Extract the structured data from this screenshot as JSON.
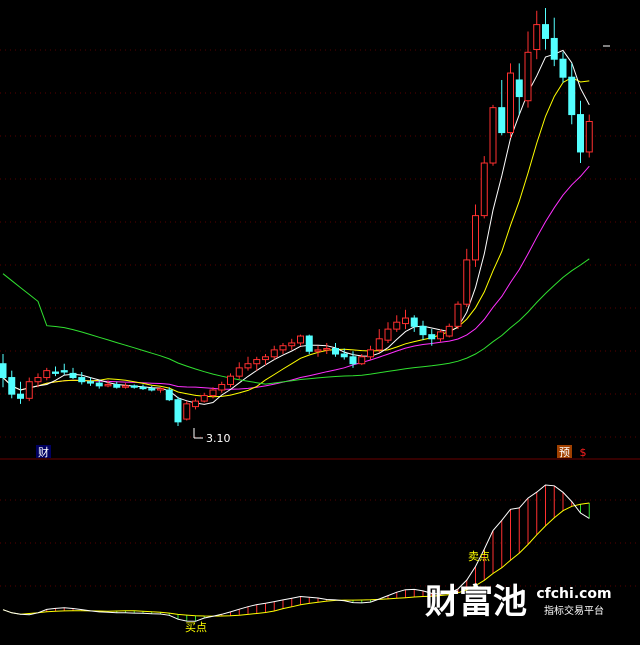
{
  "chart_data": [
    {
      "type": "candlestick",
      "panel": "price",
      "annotation_low": "3.10",
      "markers": [
        "财",
        "预",
        "$"
      ],
      "colors": {
        "up": "#ff3030",
        "down": "#54ffff",
        "ma5": "#ffffff",
        "ma10": "#ffff00",
        "ma20": "#ff30ff",
        "ma60": "#30e030"
      },
      "candles": [
        [
          3.55,
          3.62,
          3.38,
          3.45
        ],
        [
          3.45,
          3.5,
          3.3,
          3.33
        ],
        [
          3.33,
          3.42,
          3.26,
          3.3
        ],
        [
          3.3,
          3.45,
          3.28,
          3.42
        ],
        [
          3.42,
          3.48,
          3.38,
          3.45
        ],
        [
          3.45,
          3.52,
          3.43,
          3.5
        ],
        [
          3.49,
          3.53,
          3.46,
          3.48
        ],
        [
          3.5,
          3.55,
          3.47,
          3.49
        ],
        [
          3.48,
          3.52,
          3.44,
          3.45
        ],
        [
          3.45,
          3.49,
          3.4,
          3.42
        ],
        [
          3.42,
          3.45,
          3.39,
          3.41
        ],
        [
          3.41,
          3.43,
          3.37,
          3.39
        ],
        [
          3.39,
          3.43,
          3.38,
          3.4
        ],
        [
          3.4,
          3.42,
          3.37,
          3.38
        ],
        [
          3.38,
          3.41,
          3.37,
          3.39
        ],
        [
          3.39,
          3.4,
          3.37,
          3.38
        ],
        [
          3.38,
          3.4,
          3.36,
          3.37
        ],
        [
          3.37,
          3.39,
          3.35,
          3.36
        ],
        [
          3.36,
          3.38,
          3.34,
          3.37
        ],
        [
          3.36,
          3.38,
          3.28,
          3.29
        ],
        [
          3.29,
          3.31,
          3.1,
          3.13
        ],
        [
          3.15,
          3.28,
          3.14,
          3.26
        ],
        [
          3.24,
          3.3,
          3.22,
          3.28
        ],
        [
          3.28,
          3.34,
          3.27,
          3.32
        ],
        [
          3.32,
          3.38,
          3.3,
          3.36
        ],
        [
          3.36,
          3.42,
          3.34,
          3.4
        ],
        [
          3.4,
          3.48,
          3.38,
          3.46
        ],
        [
          3.46,
          3.56,
          3.44,
          3.52
        ],
        [
          3.52,
          3.6,
          3.5,
          3.55
        ],
        [
          3.55,
          3.6,
          3.5,
          3.58
        ],
        [
          3.58,
          3.62,
          3.54,
          3.6
        ],
        [
          3.6,
          3.68,
          3.58,
          3.65
        ],
        [
          3.65,
          3.7,
          3.62,
          3.68
        ],
        [
          3.68,
          3.73,
          3.65,
          3.7
        ],
        [
          3.7,
          3.76,
          3.68,
          3.75
        ],
        [
          3.75,
          3.76,
          3.62,
          3.64
        ],
        [
          3.64,
          3.68,
          3.6,
          3.65
        ],
        [
          3.65,
          3.7,
          3.62,
          3.66
        ],
        [
          3.66,
          3.7,
          3.6,
          3.62
        ],
        [
          3.62,
          3.66,
          3.58,
          3.6
        ],
        [
          3.6,
          3.64,
          3.52,
          3.55
        ],
        [
          3.55,
          3.62,
          3.54,
          3.6
        ],
        [
          3.6,
          3.68,
          3.58,
          3.65
        ],
        [
          3.65,
          3.8,
          3.63,
          3.73
        ],
        [
          3.72,
          3.85,
          3.7,
          3.8
        ],
        [
          3.8,
          3.9,
          3.78,
          3.85
        ],
        [
          3.84,
          3.94,
          3.8,
          3.88
        ],
        [
          3.88,
          3.9,
          3.78,
          3.82
        ],
        [
          3.82,
          3.86,
          3.72,
          3.76
        ],
        [
          3.76,
          3.8,
          3.68,
          3.73
        ],
        [
          3.73,
          3.8,
          3.71,
          3.78
        ],
        [
          3.75,
          3.84,
          3.74,
          3.82
        ],
        [
          3.82,
          4.0,
          3.8,
          3.98
        ],
        [
          3.98,
          4.38,
          3.96,
          4.3
        ],
        [
          4.3,
          4.7,
          4.25,
          4.62
        ],
        [
          4.62,
          5.05,
          4.6,
          5.0
        ],
        [
          5.0,
          5.42,
          4.98,
          5.4
        ],
        [
          5.4,
          5.6,
          5.2,
          5.22
        ],
        [
          5.22,
          5.72,
          5.18,
          5.65
        ],
        [
          5.6,
          5.72,
          5.35,
          5.48
        ],
        [
          5.45,
          5.95,
          5.4,
          5.8
        ],
        [
          5.82,
          6.1,
          5.75,
          6.0
        ],
        [
          6.0,
          6.12,
          5.82,
          5.9
        ],
        [
          5.9,
          6.05,
          5.7,
          5.75
        ],
        [
          5.75,
          5.8,
          5.58,
          5.62
        ],
        [
          5.62,
          5.72,
          5.28,
          5.35
        ],
        [
          5.35,
          5.45,
          5.0,
          5.08
        ],
        [
          5.08,
          5.35,
          5.04,
          5.3
        ]
      ]
    },
    {
      "type": "line",
      "panel": "indicator",
      "labels": [
        "买点",
        "卖点"
      ],
      "colors": {
        "fast": "#ffffff",
        "slow": "#ffff00",
        "fast_slow_gap": "#ff30ff",
        "fill_up": "#ff3030",
        "fill_down": "#30e030"
      }
    }
  ],
  "watermark": {
    "brand": "财富池",
    "domain": "cfchi.com",
    "tagline": "指标交易平台"
  }
}
